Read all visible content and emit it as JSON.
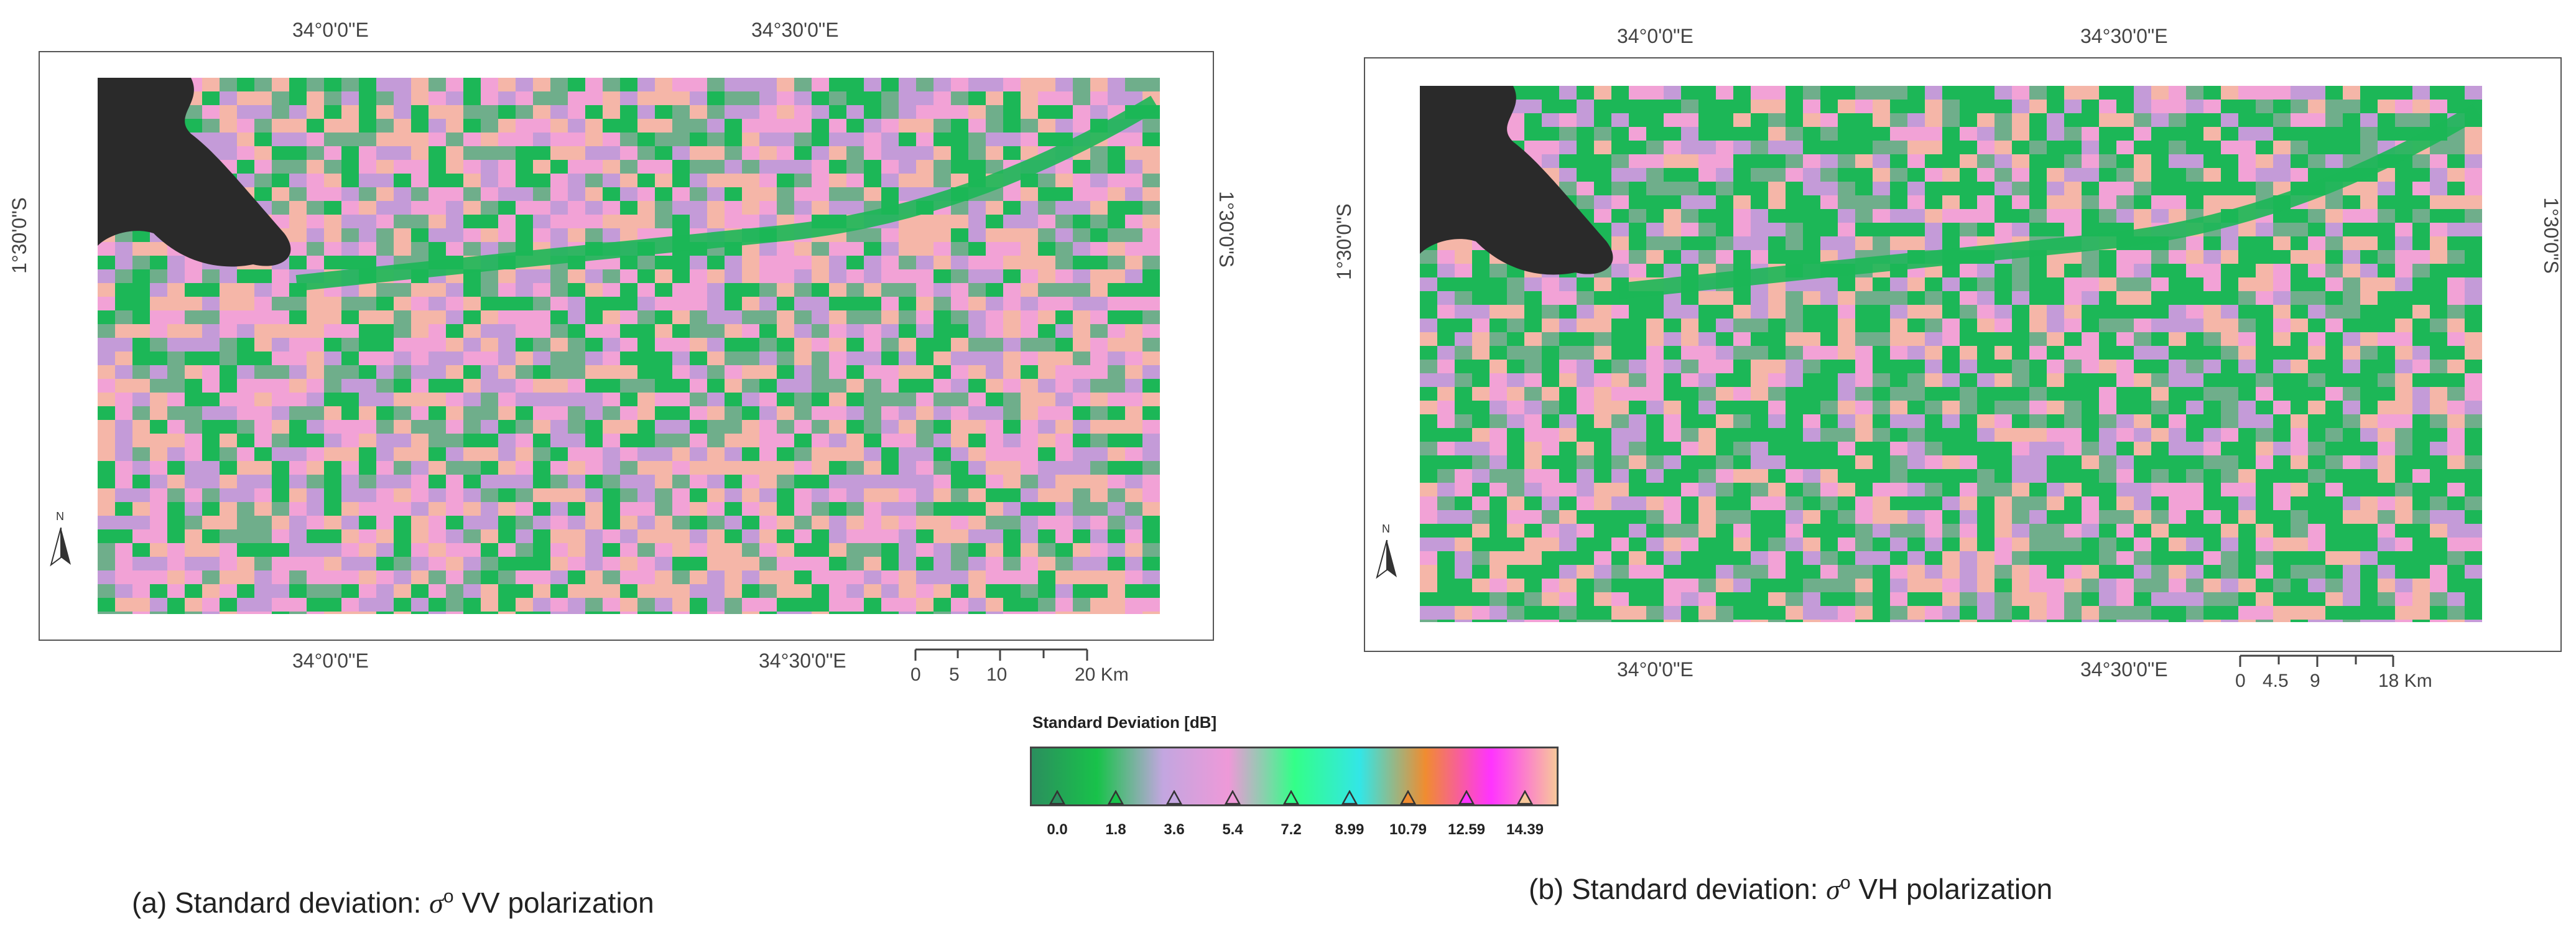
{
  "panels": [
    {
      "id": "a",
      "top_labels": [
        "34°0'0\"E",
        "34°30'0\"E"
      ],
      "bottom_labels": [
        "34°0'0\"E",
        "34°30'0\"E"
      ],
      "left_label": "1°30'0\"S",
      "right_label": "1°30'0\"S",
      "north_label": "N",
      "scale_labels": [
        "0",
        "5",
        "10",
        "20 Km"
      ],
      "caption_prefix": "(a) Standard deviation: ",
      "caption_symbol": "σ",
      "caption_sup": "o",
      "caption_suffix": " VV polarization"
    },
    {
      "id": "b",
      "top_labels": [
        "34°0'0\"E",
        "34°30'0\"E"
      ],
      "bottom_labels": [
        "34°0'0\"E",
        "34°30'0\"E"
      ],
      "left_label": "1°30'0\"S",
      "right_label": "1°30'0\"S",
      "north_label": "N",
      "scale_labels": [
        "0",
        "4.5",
        "9",
        "18 Km"
      ],
      "caption_prefix": "(b) Standard deviation: ",
      "caption_symbol": "σ",
      "caption_sup": "o",
      "caption_suffix": " VH polarization"
    }
  ],
  "legend": {
    "title": "Standard Deviation [dB]",
    "ticks": [
      "0.0",
      "1.8",
      "3.6",
      "5.4",
      "7.2",
      "8.99",
      "10.79",
      "12.59",
      "14.39"
    ],
    "colors": [
      "#2b8f5e",
      "#18c24a",
      "#c3a6e0",
      "#ee99d8",
      "#33ff88",
      "#33e6e6",
      "#f08c30",
      "#ff33ff",
      "#f8c79a"
    ]
  },
  "map_colors": {
    "green": "#1cb757",
    "lilac": "#c49bd8",
    "pink": "#f2a2d6",
    "peach": "#f5b6a8",
    "sage": "#6fae8b",
    "water": "#2a2a2a"
  }
}
